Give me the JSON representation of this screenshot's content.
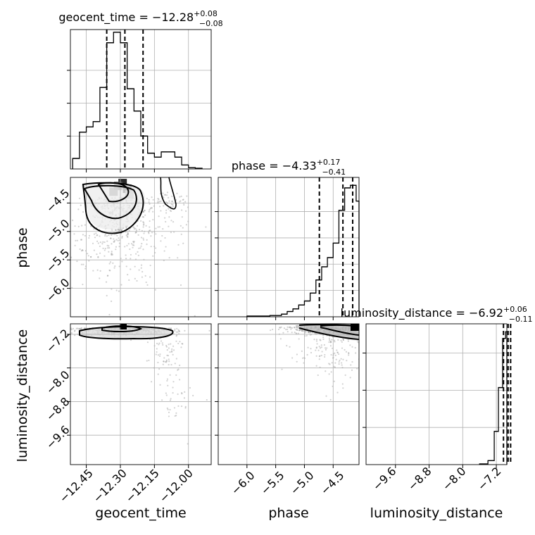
{
  "chart_data": [
    {
      "type": "histogram",
      "panel": "geocent_time",
      "title": {
        "base": "geocent_time = −12.28",
        "sup": "+0.08",
        "sub": "−0.08"
      },
      "xlim": [
        -12.52,
        -11.9
      ],
      "ylim": [
        0,
        1.06
      ],
      "quantiles": [
        -12.36,
        -12.28,
        -12.2
      ],
      "bin_edges": [
        -12.51,
        -12.48,
        -12.45,
        -12.42,
        -12.39,
        -12.36,
        -12.33,
        -12.3,
        -12.27,
        -12.24,
        -12.21,
        -12.18,
        -12.15,
        -12.12,
        -12.09,
        -12.06,
        -12.03,
        -12.0,
        -11.97,
        -11.94
      ],
      "values": [
        0.08,
        0.28,
        0.32,
        0.36,
        0.62,
        0.96,
        1.04,
        0.96,
        0.61,
        0.44,
        0.25,
        0.12,
        0.09,
        0.13,
        0.13,
        0.09,
        0.03,
        0.01,
        0.005
      ]
    },
    {
      "type": "scatter",
      "panel": "phase vs geocent_time",
      "xlim": [
        -12.52,
        -11.9
      ],
      "ylim": [
        -6.5,
        -4.05
      ],
      "ylabel": "phase",
      "yticks": [
        -6.0,
        -5.5,
        -5.0,
        -4.5
      ]
    },
    {
      "type": "histogram",
      "panel": "phase",
      "title": {
        "base": "phase = −4.33",
        "sup": "+0.17",
        "sub": "−0.41"
      },
      "xlim": [
        -6.5,
        -4.05
      ],
      "ylim": [
        0,
        1.06
      ],
      "quantiles": [
        -4.74,
        -4.33,
        -4.16
      ],
      "bin_edges": [
        -6.0,
        -5.6,
        -5.4,
        -5.3,
        -5.2,
        -5.1,
        -5.0,
        -4.9,
        -4.8,
        -4.7,
        -4.6,
        -4.5,
        -4.4,
        -4.3,
        -4.2,
        -4.1,
        -4.05
      ],
      "values": [
        0.005,
        0.01,
        0.02,
        0.04,
        0.06,
        0.09,
        0.12,
        0.18,
        0.28,
        0.38,
        0.45,
        0.56,
        0.81,
        0.98,
        1.0,
        0.88
      ]
    },
    {
      "type": "scatter",
      "panel": "luminosity_distance vs geocent_time",
      "xlim": [
        -12.52,
        -11.9
      ],
      "ylim": [
        -10.3,
        -6.95
      ],
      "ylabel": "luminosity_distance",
      "xlabel": "geocent_time",
      "xticks": [
        -12.45,
        -12.3,
        -12.15,
        -12.0
      ],
      "yticks": [
        -9.6,
        -8.8,
        -8.0,
        -7.2
      ]
    },
    {
      "type": "scatter",
      "panel": "luminosity_distance vs phase",
      "xlim": [
        -6.5,
        -4.05
      ],
      "ylim": [
        -10.3,
        -6.95
      ],
      "xlabel": "phase",
      "xticks": [
        -6.0,
        -5.5,
        -5.0,
        -4.5
      ]
    },
    {
      "type": "histogram",
      "panel": "luminosity_distance",
      "title": {
        "base": "luminosity_distance = −6.92",
        "sup": "+0.06",
        "sub": "−0.11"
      },
      "xlim": [
        -10.3,
        -6.95
      ],
      "ylim": [
        0,
        1.06
      ],
      "quantiles": [
        -7.03,
        -6.92,
        -6.86
      ],
      "bin_edges": [
        -7.6,
        -7.4,
        -7.25,
        -7.15,
        -7.05,
        -6.98,
        -6.95
      ],
      "values": [
        0.005,
        0.03,
        0.25,
        0.58,
        0.95,
        1.0
      ],
      "xlabel": "luminosity_distance",
      "xticks": [
        -9.6,
        -8.8,
        -8.0,
        -7.2
      ]
    }
  ],
  "ticks": {
    "geocent_time": [
      "−12.45",
      "−12.30",
      "−12.15",
      "−12.00"
    ],
    "phase": [
      "−6.0",
      "−5.5",
      "−5.0",
      "−4.5"
    ],
    "luminosity_distance": [
      "−9.6",
      "−8.8",
      "−8.0",
      "−7.2"
    ]
  },
  "labels": {
    "geocent_time": "geocent_time",
    "phase": "phase",
    "luminosity_distance": "luminosity_distance"
  },
  "colors": {
    "line": "#000000",
    "grid": "#b0b0b0",
    "points": "#7f7f7f"
  }
}
